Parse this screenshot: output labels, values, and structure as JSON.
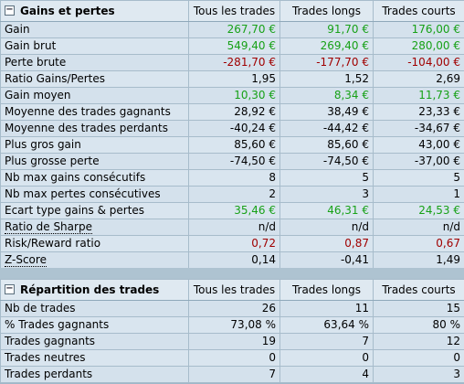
{
  "section1": {
    "title": "Gains et pertes",
    "columns": [
      "Tous les trades",
      "Trades longs",
      "Trades courts"
    ],
    "rows": [
      {
        "label": "Gain",
        "values": [
          "267,70 €",
          "91,70 €",
          "176,00 €"
        ],
        "style": "pos"
      },
      {
        "label": "Gain brut",
        "values": [
          "549,40 €",
          "269,40 €",
          "280,00 €"
        ],
        "style": "pos"
      },
      {
        "label": "Perte brute",
        "values": [
          "-281,70 €",
          "-177,70 €",
          "-104,00 €"
        ],
        "style": "neg"
      },
      {
        "label": "Ratio Gains/Pertes",
        "values": [
          "1,95",
          "1,52",
          "2,69"
        ],
        "style": ""
      },
      {
        "label": "Gain moyen",
        "values": [
          "10,30 €",
          "8,34 €",
          "11,73 €"
        ],
        "style": "pos"
      },
      {
        "label": "Moyenne des trades gagnants",
        "values": [
          "28,92 €",
          "38,49 €",
          "23,33 €"
        ],
        "style": ""
      },
      {
        "label": "Moyenne des trades perdants",
        "values": [
          "-40,24 €",
          "-44,42 €",
          "-34,67 €"
        ],
        "style": ""
      },
      {
        "label": "Plus gros gain",
        "values": [
          "85,60 €",
          "85,60 €",
          "43,00 €"
        ],
        "style": ""
      },
      {
        "label": "Plus grosse perte",
        "values": [
          "-74,50 €",
          "-74,50 €",
          "-37,00 €"
        ],
        "style": ""
      },
      {
        "label": "Nb max gains consécutifs",
        "values": [
          "8",
          "5",
          "5"
        ],
        "style": ""
      },
      {
        "label": "Nb max pertes consécutives",
        "values": [
          "2",
          "3",
          "1"
        ],
        "style": ""
      },
      {
        "label": "Ecart type gains & pertes",
        "values": [
          "35,46 €",
          "46,31 €",
          "24,53 €"
        ],
        "style": "pos"
      },
      {
        "label": "Ratio de Sharpe",
        "values": [
          "n/d",
          "n/d",
          "n/d"
        ],
        "style": "",
        "dotted": true
      },
      {
        "label": "Risk/Reward ratio",
        "values": [
          "0,72",
          "0,87",
          "0,67"
        ],
        "style": "neg"
      },
      {
        "label": "Z-Score",
        "values": [
          "0,14",
          "-0,41",
          "1,49"
        ],
        "style": "",
        "dotted": true
      }
    ]
  },
  "section2": {
    "title": "Répartition des trades",
    "columns": [
      "Tous les trades",
      "Trades longs",
      "Trades courts"
    ],
    "rows": [
      {
        "label": "Nb de trades",
        "values": [
          "26",
          "11",
          "15"
        ],
        "style": ""
      },
      {
        "label": "% Trades gagnants",
        "values": [
          "73,08 %",
          "63,64 %",
          "80 %"
        ],
        "style": ""
      },
      {
        "label": "Trades gagnants",
        "values": [
          "19",
          "7",
          "12"
        ],
        "style": ""
      },
      {
        "label": "Trades neutres",
        "values": [
          "0",
          "0",
          "0"
        ],
        "style": ""
      },
      {
        "label": "Trades perdants",
        "values": [
          "7",
          "4",
          "3"
        ],
        "style": ""
      }
    ]
  },
  "toggle_symbol": "−"
}
